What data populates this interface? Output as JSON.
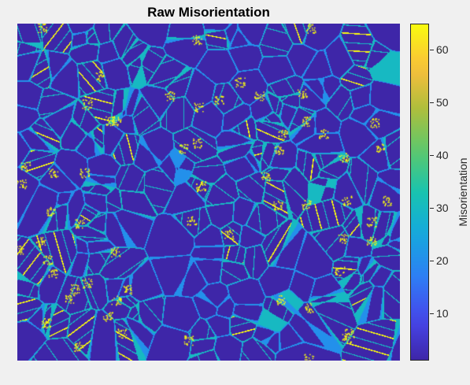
{
  "chart_data": {
    "type": "heatmap",
    "title": "Raw Misorientation",
    "colorbar": {
      "label": "Misorientation",
      "colormap": "parula",
      "range": [
        1,
        65
      ],
      "ticks": [
        10,
        20,
        30,
        40,
        50,
        60
      ],
      "tick_labels": [
        "10",
        "20",
        "30",
        "40",
        "50",
        "60"
      ]
    },
    "background_value": 1,
    "grain_boundary_value_range": [
      20,
      40
    ],
    "twin_boundary_value": 60,
    "description_values": {
      "grain_interior_color": "#3e26a8",
      "boundary_color": "#1ac7c2",
      "twin_color": "#f9fb0e"
    },
    "axes_visible": false
  }
}
